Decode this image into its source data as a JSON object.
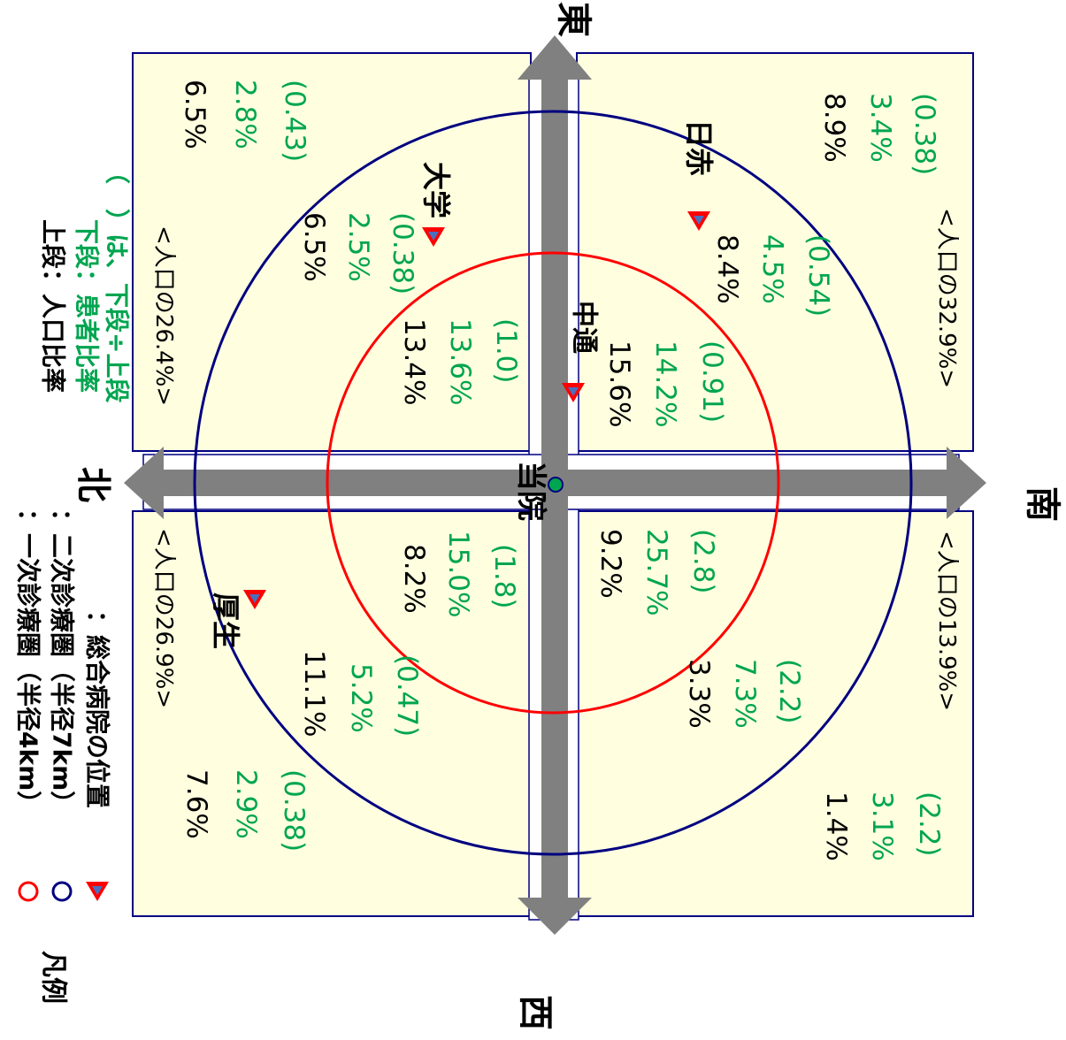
{
  "colors": {
    "quadrant_fill": "#ffffe0",
    "quadrant_border": "#000080",
    "circle_primary": "#ff0000",
    "circle_secondary": "#000080",
    "arrow": "#808080",
    "green_text": "#00a550",
    "marker_fill": "#ff0000",
    "marker_inner": "#4a6fbf",
    "center_fill": "#00a550",
    "center_border": "#000080"
  },
  "legend": {
    "title": "凡例",
    "primary_label": "：一次診療圏（半径4km）",
    "secondary_label": "：二次診療圏（半径7km）",
    "hospital_label": "：総合病院の位置",
    "primary_icon": "red-circle-icon",
    "secondary_icon": "blue-circle-icon",
    "hospital_icon": "red-triangle-icon"
  },
  "notes": {
    "line1": "上段：人口比率",
    "line2": "下段：患者比率",
    "line3": "（　）は、下段÷上段"
  },
  "directions": {
    "east": "東",
    "west": "西",
    "south": "南",
    "north": "北"
  },
  "center": {
    "label": "当院"
  },
  "hospitals": {
    "daigaku": "大学",
    "nisseki": "日赤",
    "nakadori": "中通",
    "kousei": "厚生"
  },
  "quadrants": {
    "ne": {
      "pop_label": "<人口の26.4%>"
    },
    "se": {
      "pop_label": "<人口の32.9%>"
    },
    "nw": {
      "pop_label": "<人口の26.9%>"
    },
    "sw": {
      "pop_label": "<人口の13.9%>"
    }
  },
  "stats": {
    "ne_outer": {
      "pop": "6.5%",
      "patient": "2.8%",
      "ratio": "(0.43)"
    },
    "ne_mid": {
      "pop": "6.5%",
      "patient": "2.5%",
      "ratio": "(0.38)"
    },
    "ne_inner": {
      "pop": "13.4%",
      "patient": "13.6%",
      "ratio": "(1.0)"
    },
    "se_inner": {
      "pop": "15.6%",
      "patient": "14.2%",
      "ratio": "(0.91)"
    },
    "se_mid": {
      "pop": "8.4%",
      "patient": "4.5%",
      "ratio": "(0.54)"
    },
    "se_outer": {
      "pop": "8.9%",
      "patient": "3.4%",
      "ratio": "(0.38)"
    },
    "nw_inner": {
      "pop": "8.2%",
      "patient": "15.0%",
      "ratio": "(1.8)"
    },
    "nw_mid": {
      "pop": "11.1%",
      "patient": "5.2%",
      "ratio": "(0.47)"
    },
    "nw_outer": {
      "pop": "7.6%",
      "patient": "2.9%",
      "ratio": "(0.38)"
    },
    "sw_inner": {
      "pop": "9.2%",
      "patient": "25.7%",
      "ratio": "(2.8)"
    },
    "sw_mid": {
      "pop": "3.3%",
      "patient": "7.3%",
      "ratio": "(2.2)"
    },
    "sw_outer": {
      "pop": "1.4%",
      "patient": "3.1%",
      "ratio": "(2.2)"
    }
  }
}
